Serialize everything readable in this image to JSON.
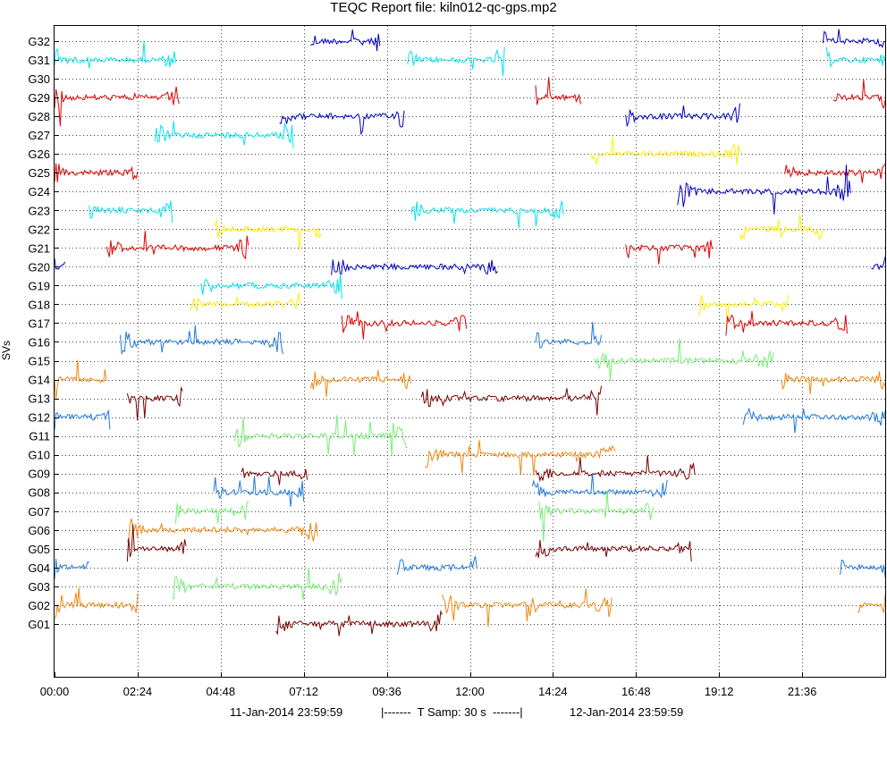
{
  "chart_data": {
    "type": "line",
    "title": "TEQC Report file: kiln012-qc-gps.mp2",
    "ylabel": "SVs",
    "xlabel": "",
    "x_units": "hh:mm",
    "x_range": [
      "00:00",
      "24:00"
    ],
    "x_ticks": [
      "00:00",
      "02:24",
      "04:48",
      "07:12",
      "09:36",
      "12:00",
      "14:24",
      "16:48",
      "19:12",
      "21:36"
    ],
    "y_ticks": [
      "G01",
      "G02",
      "G03",
      "G04",
      "G05",
      "G06",
      "G07",
      "G08",
      "G09",
      "G10",
      "G11",
      "G12",
      "G13",
      "G14",
      "G15",
      "G16",
      "G17",
      "G18",
      "G19",
      "G20",
      "G21",
      "G22",
      "G23",
      "G24",
      "G25",
      "G26",
      "G27",
      "G28",
      "G29",
      "G30",
      "G31",
      "G32"
    ],
    "grid": true,
    "footer": {
      "start": "11-Jan-2014 23:59:59",
      "sampling": "|-------  T Samp: 30 s  -------|",
      "end": "12-Jan-2014 23:59:59"
    },
    "series": [
      {
        "sv": "G32",
        "color": "#0000bb",
        "segments": [
          [
            7.4,
            9.4
          ],
          [
            22.2,
            24.0
          ]
        ]
      },
      {
        "sv": "G31",
        "color": "#00e5ee",
        "segments": [
          [
            0.0,
            3.5
          ],
          [
            10.2,
            13.0
          ],
          [
            22.3,
            24.0
          ]
        ]
      },
      {
        "sv": "G29",
        "color": "#dd0000",
        "segments": [
          [
            0.0,
            3.6
          ],
          [
            13.9,
            15.2
          ],
          [
            22.5,
            24.0
          ]
        ]
      },
      {
        "sv": "G28",
        "color": "#0000bb",
        "segments": [
          [
            6.5,
            10.1
          ],
          [
            16.5,
            19.8
          ]
        ]
      },
      {
        "sv": "G27",
        "color": "#00e5ee",
        "segments": [
          [
            2.9,
            6.9
          ]
        ]
      },
      {
        "sv": "G26",
        "color": "#ffee00",
        "segments": [
          [
            15.5,
            19.8
          ]
        ]
      },
      {
        "sv": "G25",
        "color": "#dd0000",
        "segments": [
          [
            0.0,
            2.4
          ],
          [
            21.1,
            24.0
          ]
        ]
      },
      {
        "sv": "G24",
        "color": "#0000bb",
        "segments": [
          [
            18.0,
            23.0
          ]
        ]
      },
      {
        "sv": "G23",
        "color": "#00e5ee",
        "segments": [
          [
            1.0,
            3.4
          ],
          [
            10.3,
            14.7
          ]
        ]
      },
      {
        "sv": "G22",
        "color": "#ffee00",
        "segments": [
          [
            4.6,
            7.7
          ],
          [
            19.8,
            22.2
          ]
        ]
      },
      {
        "sv": "G21",
        "color": "#dd0000",
        "segments": [
          [
            1.5,
            5.6
          ],
          [
            16.5,
            19.0
          ]
        ]
      },
      {
        "sv": "G20",
        "color": "#0000bb",
        "segments": [
          [
            0.0,
            0.3
          ],
          [
            8.0,
            12.8
          ],
          [
            23.6,
            24.0
          ]
        ]
      },
      {
        "sv": "G19",
        "color": "#00e5ee",
        "segments": [
          [
            4.2,
            8.3
          ]
        ]
      },
      {
        "sv": "G18",
        "color": "#ffee00",
        "segments": [
          [
            3.9,
            7.1
          ],
          [
            18.6,
            21.2
          ]
        ]
      },
      {
        "sv": "G17",
        "color": "#dd0000",
        "segments": [
          [
            8.3,
            11.9
          ],
          [
            19.4,
            22.9
          ]
        ]
      },
      {
        "sv": "G16",
        "color": "#1e78dd",
        "segments": [
          [
            1.9,
            6.6
          ],
          [
            13.9,
            15.8
          ]
        ]
      },
      {
        "sv": "G15",
        "color": "#77ee77",
        "segments": [
          [
            15.6,
            20.8
          ]
        ]
      },
      {
        "sv": "G14",
        "color": "#ee8811",
        "segments": [
          [
            0.0,
            1.5
          ],
          [
            7.4,
            10.3
          ],
          [
            21.0,
            24.0
          ]
        ]
      },
      {
        "sv": "G13",
        "color": "#770000",
        "segments": [
          [
            2.1,
            3.7
          ],
          [
            10.6,
            15.8
          ]
        ]
      },
      {
        "sv": "G12",
        "color": "#1e78dd",
        "segments": [
          [
            0.0,
            1.6
          ],
          [
            19.9,
            24.0
          ]
        ]
      },
      {
        "sv": "G11",
        "color": "#77ee77",
        "segments": [
          [
            5.2,
            10.2
          ]
        ]
      },
      {
        "sv": "G10",
        "color": "#ee8811",
        "segments": [
          [
            10.7,
            16.2
          ]
        ]
      },
      {
        "sv": "G09",
        "color": "#770000",
        "segments": [
          [
            5.4,
            7.3
          ],
          [
            13.9,
            18.5
          ]
        ]
      },
      {
        "sv": "G08",
        "color": "#1e78dd",
        "segments": [
          [
            4.6,
            7.2
          ],
          [
            13.8,
            17.7
          ]
        ]
      },
      {
        "sv": "G07",
        "color": "#77ee77",
        "segments": [
          [
            3.5,
            5.6
          ],
          [
            14.0,
            17.3
          ]
        ]
      },
      {
        "sv": "G06",
        "color": "#ee8811",
        "segments": [
          [
            2.1,
            7.6
          ]
        ]
      },
      {
        "sv": "G05",
        "color": "#770000",
        "segments": [
          [
            2.1,
            3.8
          ],
          [
            13.9,
            18.4
          ]
        ]
      },
      {
        "sv": "G04",
        "color": "#1e78dd",
        "segments": [
          [
            0.0,
            1.0
          ],
          [
            9.9,
            12.2
          ],
          [
            22.7,
            24.0
          ]
        ]
      },
      {
        "sv": "G03",
        "color": "#77ee77",
        "segments": [
          [
            3.4,
            8.3
          ]
        ]
      },
      {
        "sv": "G02",
        "color": "#ee8811",
        "segments": [
          [
            0.0,
            2.4
          ],
          [
            11.2,
            16.1
          ],
          [
            23.2,
            24.0
          ]
        ]
      },
      {
        "sv": "G01",
        "color": "#770000",
        "segments": [
          [
            6.4,
            11.2
          ]
        ]
      }
    ]
  }
}
